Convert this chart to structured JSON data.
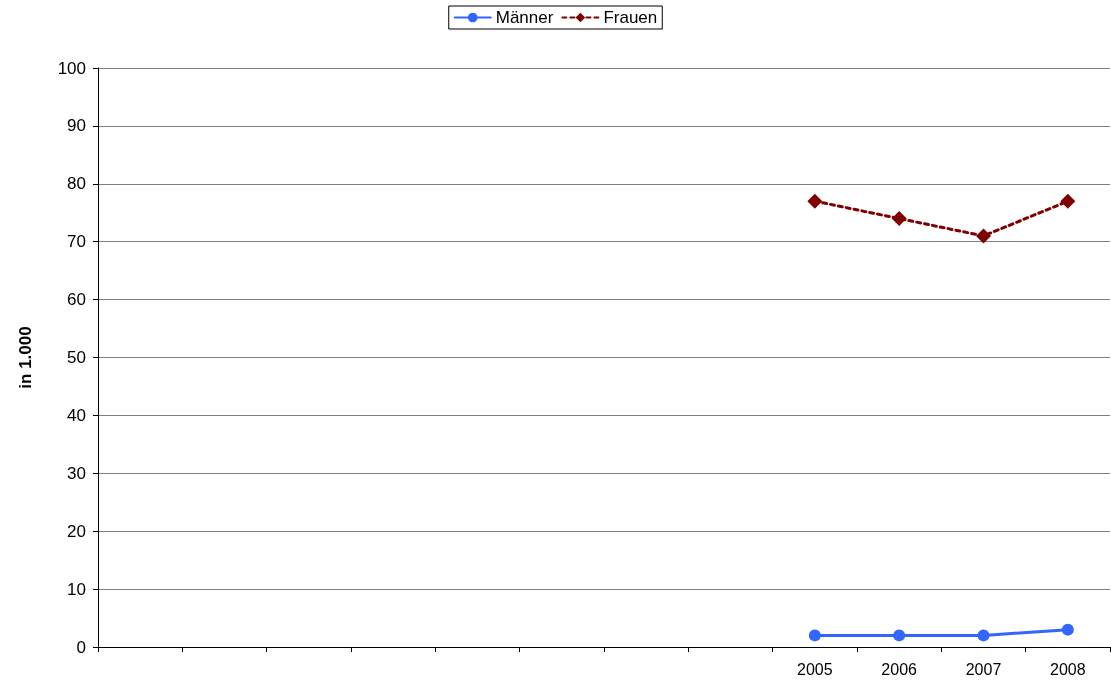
{
  "chart_data": {
    "type": "line",
    "ylabel": "in 1.000",
    "categories": [
      null,
      null,
      null,
      null,
      null,
      null,
      null,
      null,
      "2005",
      "2006",
      "2007",
      "2008"
    ],
    "series": [
      {
        "name": "Männer",
        "color": "#3366ff",
        "marker": "circle",
        "line_style": "solid",
        "values": [
          null,
          null,
          null,
          null,
          null,
          null,
          null,
          null,
          2,
          2,
          2,
          3
        ]
      },
      {
        "name": "Frauen",
        "color": "#800000",
        "marker": "diamond",
        "line_style": "dashed",
        "values": [
          null,
          null,
          null,
          null,
          null,
          null,
          null,
          null,
          77,
          74,
          71,
          77
        ]
      }
    ],
    "ylim": [
      0,
      100
    ],
    "yticks": [
      0,
      10,
      20,
      30,
      40,
      50,
      60,
      70,
      80,
      90,
      100
    ],
    "grid": "y",
    "legend": "top"
  }
}
